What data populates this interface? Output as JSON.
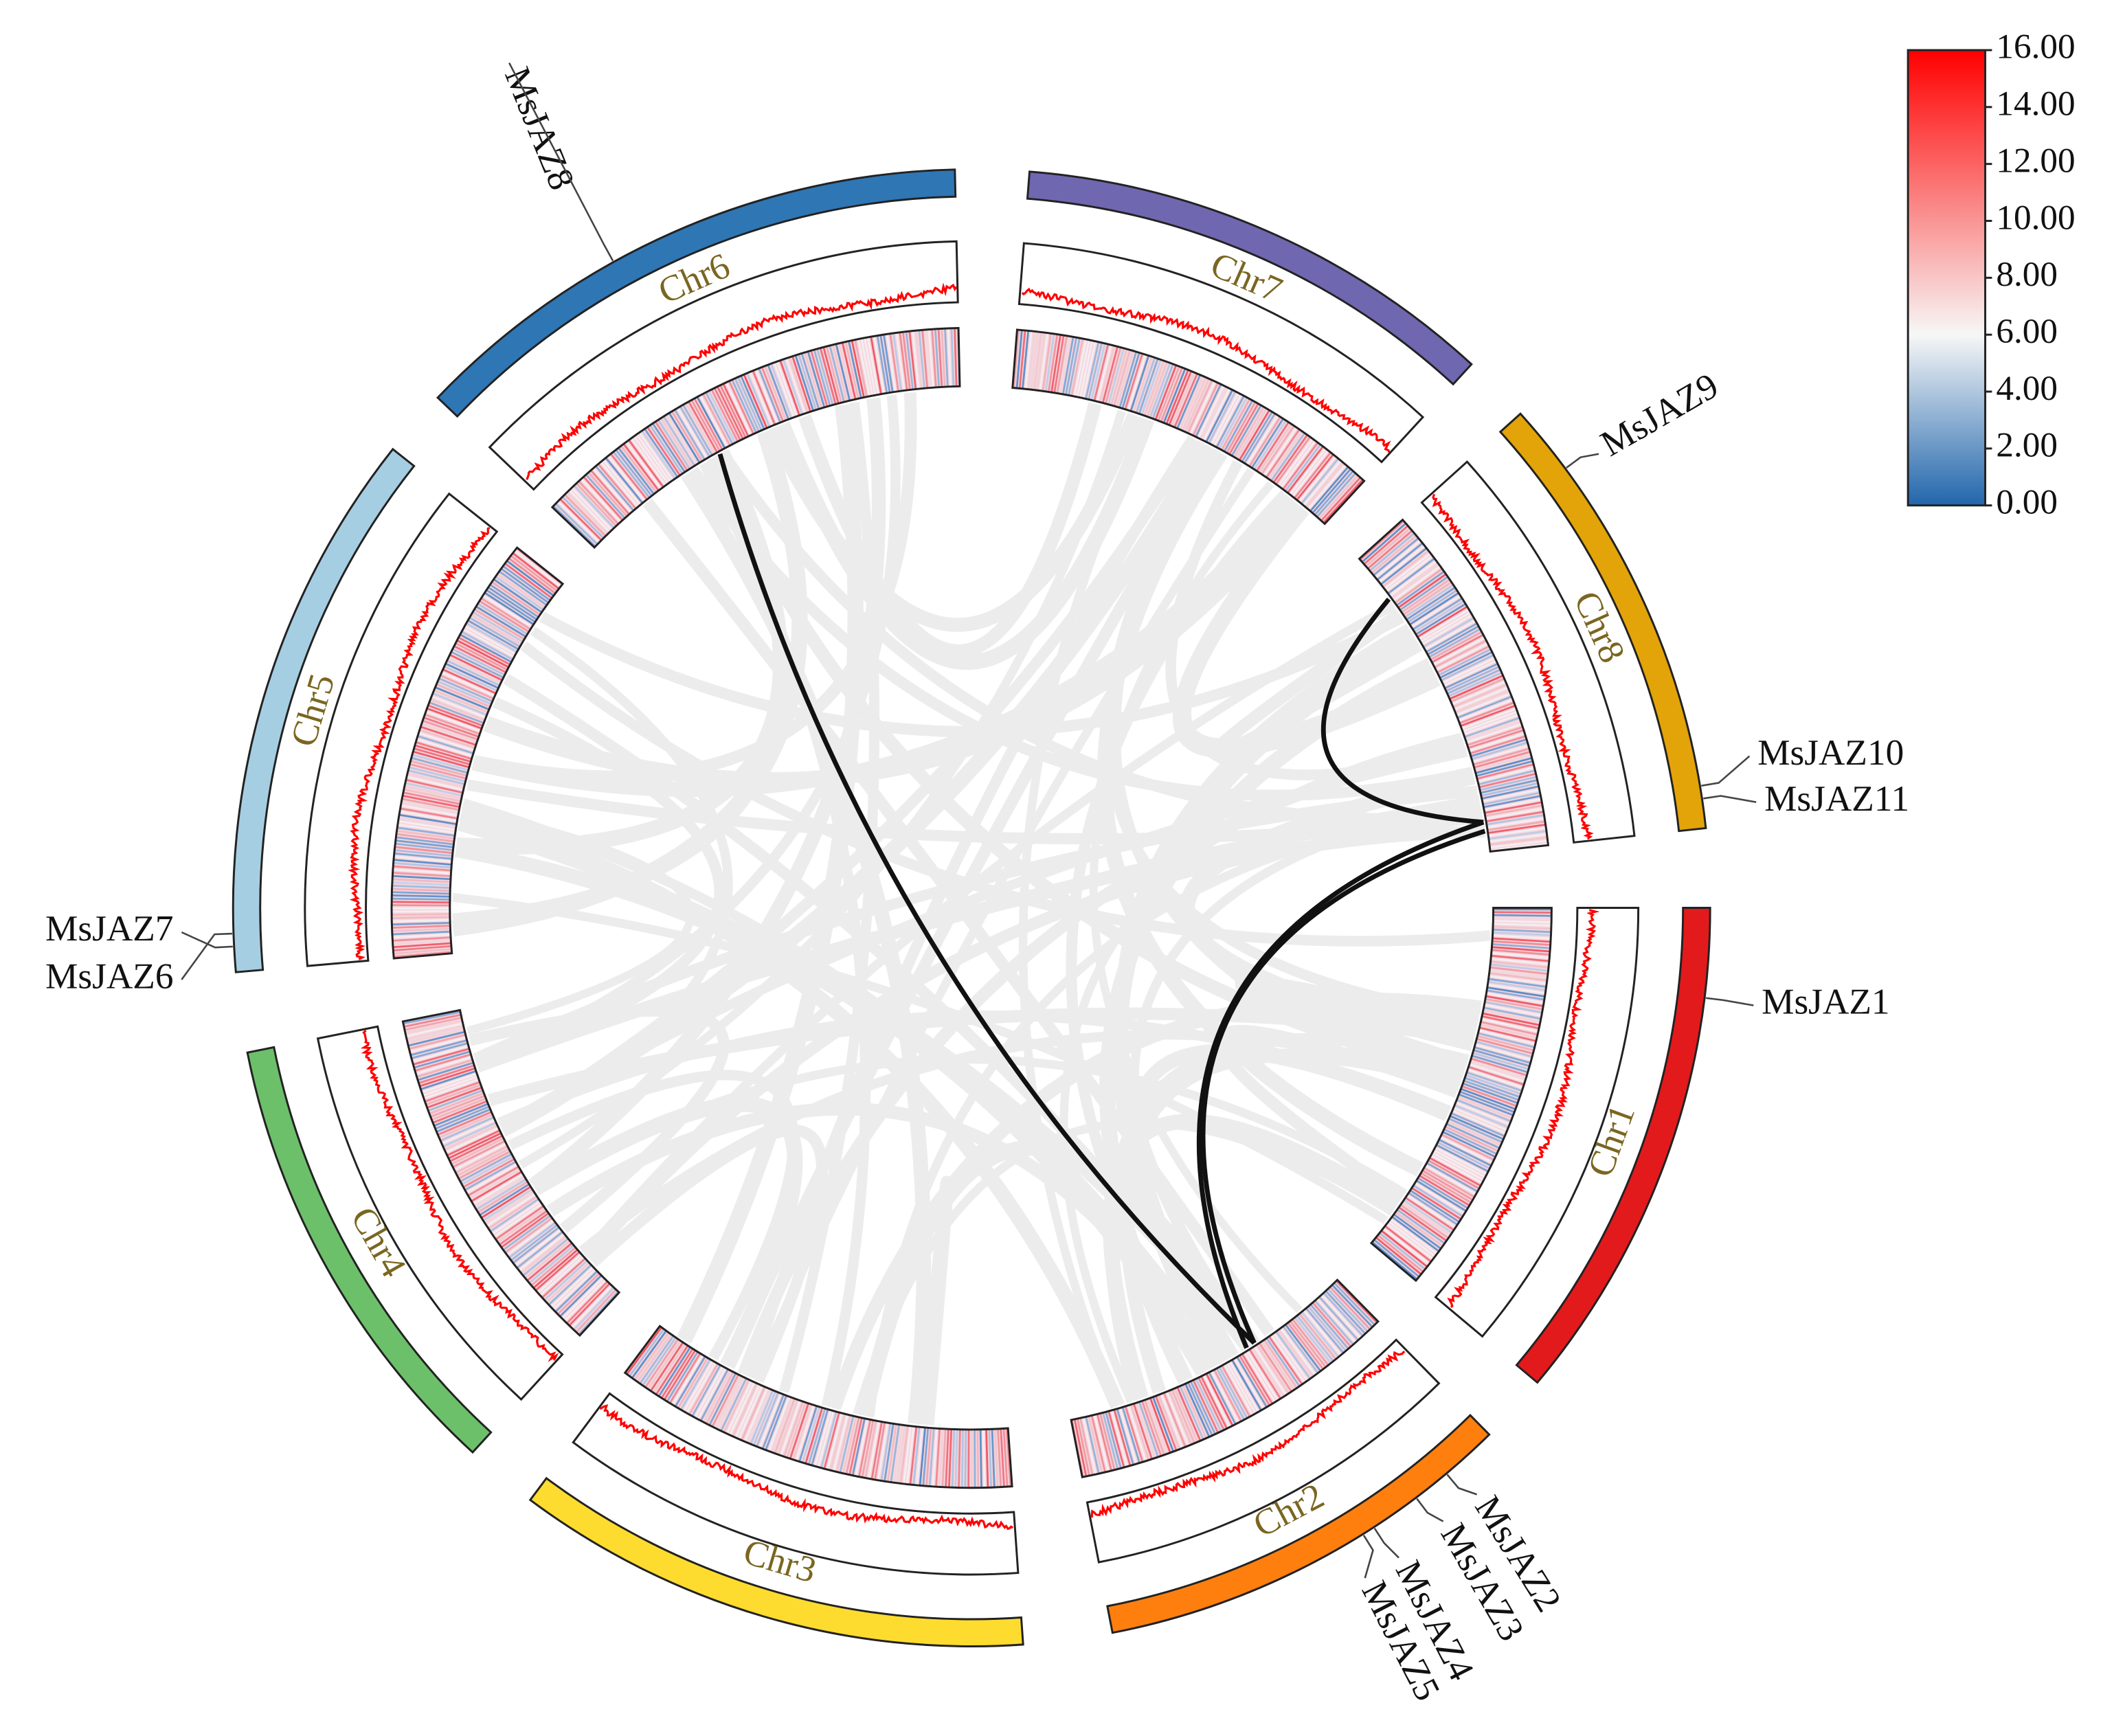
{
  "chart_data": {
    "type": "circos",
    "chromosomes": [
      {
        "name": "Chr1",
        "color": "#e31a1c"
      },
      {
        "name": "Chr2",
        "color": "#ff7f0e"
      },
      {
        "name": "Chr3",
        "color": "#fddc2f"
      },
      {
        "name": "Chr4",
        "color": "#6cc06a"
      },
      {
        "name": "Chr5",
        "color": "#a6cee3"
      },
      {
        "name": "Chr6",
        "color": "#2f76b4"
      },
      {
        "name": "Chr7",
        "color": "#6f67b0"
      },
      {
        "name": "Chr8",
        "color": "#e3a409"
      }
    ],
    "genes": [
      "MsJAZ1",
      "MsJAZ2",
      "MsJAZ3",
      "MsJAZ4",
      "MsJAZ5",
      "MsJAZ6",
      "MsJAZ7",
      "MsJAZ8",
      "MsJAZ9",
      "MsJAZ10",
      "MsJAZ11"
    ],
    "links": [
      [
        "MsJAZ8",
        "MsJAZ4"
      ],
      [
        "MsJAZ9",
        "MsJAZ10"
      ],
      [
        "MsJAZ10",
        "MsJAZ5"
      ],
      [
        "MsJAZ11",
        "MsJAZ4"
      ]
    ],
    "colorbar": {
      "lim": [
        0,
        16
      ],
      "ticks": [
        {
          "value": 0,
          "label": "0.00"
        },
        {
          "value": 2,
          "label": "2.00"
        },
        {
          "value": 4,
          "label": "4.00"
        },
        {
          "value": 6,
          "label": "6.00"
        },
        {
          "value": 8,
          "label": "8.00"
        },
        {
          "value": 10,
          "label": "10.00"
        },
        {
          "value": 12,
          "label": "12.00"
        },
        {
          "value": 14,
          "label": "14.00"
        },
        {
          "value": 16,
          "label": "16.00"
        }
      ],
      "color_stops": [
        {
          "value": 0,
          "color": "#2166ac"
        },
        {
          "value": 6,
          "color": "#f7f7f7"
        },
        {
          "value": 16,
          "color": "#ff0000"
        }
      ]
    }
  }
}
